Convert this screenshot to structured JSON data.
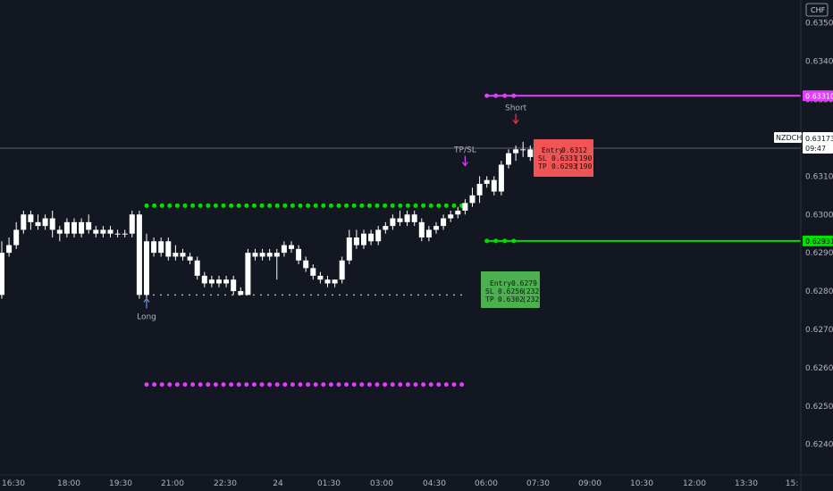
{
  "chart_data": {
    "type": "candlestick",
    "symbol": "NZDCHF",
    "currency_label": "CHF",
    "last_price_label": "0.63173",
    "countdown_label": "09:47",
    "colors": {
      "background": "#131722",
      "candle": "#ffffff",
      "axis_text": "#b2b5be",
      "green": "#00e000",
      "magenta": "#e040fb",
      "red_box": "#f05454",
      "green_box": "#4caf50",
      "line_grey": "#787b86"
    },
    "ylim": [
      0.6232,
      0.6356
    ],
    "y_ticks": [
      "0.62400",
      "0.62500",
      "0.62600",
      "0.62700",
      "0.62800",
      "0.62900",
      "0.63000",
      "0.63100",
      "0.63200",
      "0.63300",
      "0.63400",
      "0.63500"
    ],
    "x_ticks": [
      "16:30",
      "18:00",
      "19:30",
      "21:00",
      "22:30",
      "24",
      "01:30",
      "03:00",
      "04:30",
      "06:00",
      "07:30",
      "09:00",
      "10:30",
      "12:00",
      "13:30",
      "15:"
    ],
    "candles": [
      {
        "o": 0.629,
        "h": 0.6293,
        "c": 0.6279,
        "l": 0.6278
      },
      {
        "o": 0.629,
        "h": 0.6294,
        "c": 0.6292,
        "l": 0.6289
      },
      {
        "o": 0.6292,
        "h": 0.6298,
        "c": 0.6296,
        "l": 0.6291
      },
      {
        "o": 0.6296,
        "h": 0.6301,
        "c": 0.63,
        "l": 0.6295
      },
      {
        "o": 0.63,
        "h": 0.6301,
        "c": 0.6298,
        "l": 0.6296
      },
      {
        "o": 0.6298,
        "h": 0.63,
        "c": 0.6297,
        "l": 0.6296
      },
      {
        "o": 0.6297,
        "h": 0.63,
        "c": 0.6299,
        "l": 0.6296
      },
      {
        "o": 0.6299,
        "h": 0.6301,
        "c": 0.6296,
        "l": 0.6294
      },
      {
        "o": 0.6296,
        "h": 0.6297,
        "c": 0.6295,
        "l": 0.6293
      },
      {
        "o": 0.6295,
        "h": 0.6299,
        "c": 0.6298,
        "l": 0.6294
      },
      {
        "o": 0.6298,
        "h": 0.6299,
        "c": 0.6295,
        "l": 0.6294
      },
      {
        "o": 0.6295,
        "h": 0.6299,
        "c": 0.6298,
        "l": 0.6294
      },
      {
        "o": 0.6298,
        "h": 0.63,
        "c": 0.6296,
        "l": 0.6295
      },
      {
        "o": 0.6296,
        "h": 0.6297,
        "c": 0.6295,
        "l": 0.6294
      },
      {
        "o": 0.6295,
        "h": 0.6297,
        "c": 0.6296,
        "l": 0.6294
      },
      {
        "o": 0.6296,
        "h": 0.6297,
        "c": 0.6295,
        "l": 0.6294
      },
      {
        "o": 0.6295,
        "h": 0.6296,
        "c": 0.6295,
        "l": 0.6294
      },
      {
        "o": 0.6295,
        "h": 0.6296,
        "c": 0.6295,
        "l": 0.6294
      },
      {
        "o": 0.6295,
        "h": 0.6301,
        "c": 0.63,
        "l": 0.6294
      },
      {
        "o": 0.63,
        "h": 0.6301,
        "c": 0.6279,
        "l": 0.6278
      },
      {
        "o": 0.6279,
        "h": 0.6295,
        "c": 0.6293,
        "l": 0.6278
      },
      {
        "o": 0.6293,
        "h": 0.6294,
        "c": 0.629,
        "l": 0.6289
      },
      {
        "o": 0.629,
        "h": 0.6294,
        "c": 0.6293,
        "l": 0.6289
      },
      {
        "o": 0.6293,
        "h": 0.6294,
        "c": 0.6289,
        "l": 0.6288
      },
      {
        "o": 0.6289,
        "h": 0.6292,
        "c": 0.629,
        "l": 0.6288
      },
      {
        "o": 0.629,
        "h": 0.6291,
        "c": 0.6289,
        "l": 0.6288
      },
      {
        "o": 0.6289,
        "h": 0.629,
        "c": 0.6288,
        "l": 0.6287
      },
      {
        "o": 0.6288,
        "h": 0.6289,
        "c": 0.6284,
        "l": 0.6283
      },
      {
        "o": 0.6284,
        "h": 0.6285,
        "c": 0.6282,
        "l": 0.6281
      },
      {
        "o": 0.6282,
        "h": 0.6284,
        "c": 0.6283,
        "l": 0.6281
      },
      {
        "o": 0.6283,
        "h": 0.6284,
        "c": 0.6282,
        "l": 0.6281
      },
      {
        "o": 0.6282,
        "h": 0.6284,
        "c": 0.6283,
        "l": 0.6281
      },
      {
        "o": 0.6283,
        "h": 0.6284,
        "c": 0.628,
        "l": 0.6279
      },
      {
        "o": 0.628,
        "h": 0.6281,
        "c": 0.6279,
        "l": 0.6279
      },
      {
        "o": 0.6279,
        "h": 0.6291,
        "c": 0.629,
        "l": 0.6279
      },
      {
        "o": 0.629,
        "h": 0.6291,
        "c": 0.6289,
        "l": 0.6288
      },
      {
        "o": 0.6289,
        "h": 0.6291,
        "c": 0.629,
        "l": 0.6288
      },
      {
        "o": 0.629,
        "h": 0.6291,
        "c": 0.6289,
        "l": 0.6288
      },
      {
        "o": 0.6289,
        "h": 0.6291,
        "c": 0.629,
        "l": 0.6283
      },
      {
        "o": 0.629,
        "h": 0.6293,
        "c": 0.6292,
        "l": 0.6289
      },
      {
        "o": 0.6292,
        "h": 0.6293,
        "c": 0.6291,
        "l": 0.629
      },
      {
        "o": 0.6291,
        "h": 0.6292,
        "c": 0.6288,
        "l": 0.6287
      },
      {
        "o": 0.6288,
        "h": 0.6289,
        "c": 0.6286,
        "l": 0.6285
      },
      {
        "o": 0.6286,
        "h": 0.6287,
        "c": 0.6284,
        "l": 0.6283
      },
      {
        "o": 0.6284,
        "h": 0.6285,
        "c": 0.6283,
        "l": 0.6282
      },
      {
        "o": 0.6283,
        "h": 0.6284,
        "c": 0.6282,
        "l": 0.6281
      },
      {
        "o": 0.6282,
        "h": 0.6283,
        "c": 0.6283,
        "l": 0.6281
      },
      {
        "o": 0.6283,
        "h": 0.6289,
        "c": 0.6288,
        "l": 0.6282
      },
      {
        "o": 0.6288,
        "h": 0.6296,
        "c": 0.6294,
        "l": 0.6287
      },
      {
        "o": 0.6294,
        "h": 0.6296,
        "c": 0.6292,
        "l": 0.6291
      },
      {
        "o": 0.6292,
        "h": 0.6296,
        "c": 0.6295,
        "l": 0.6291
      },
      {
        "o": 0.6295,
        "h": 0.6296,
        "c": 0.6293,
        "l": 0.6292
      },
      {
        "o": 0.6293,
        "h": 0.6297,
        "c": 0.6296,
        "l": 0.6292
      },
      {
        "o": 0.6296,
        "h": 0.6298,
        "c": 0.6297,
        "l": 0.6295
      },
      {
        "o": 0.6297,
        "h": 0.63,
        "c": 0.6299,
        "l": 0.6296
      },
      {
        "o": 0.6299,
        "h": 0.6301,
        "c": 0.6298,
        "l": 0.6297
      },
      {
        "o": 0.6298,
        "h": 0.6301,
        "c": 0.63,
        "l": 0.6297
      },
      {
        "o": 0.63,
        "h": 0.6301,
        "c": 0.6298,
        "l": 0.6297
      },
      {
        "o": 0.6298,
        "h": 0.6299,
        "c": 0.6294,
        "l": 0.6293
      },
      {
        "o": 0.6294,
        "h": 0.6297,
        "c": 0.6296,
        "l": 0.6293
      },
      {
        "o": 0.6296,
        "h": 0.6298,
        "c": 0.6297,
        "l": 0.6295
      },
      {
        "o": 0.6297,
        "h": 0.63,
        "c": 0.6299,
        "l": 0.6296
      },
      {
        "o": 0.6299,
        "h": 0.6301,
        "c": 0.63,
        "l": 0.6298
      },
      {
        "o": 0.63,
        "h": 0.6302,
        "c": 0.6301,
        "l": 0.6299
      },
      {
        "o": 0.6301,
        "h": 0.6304,
        "c": 0.6303,
        "l": 0.63
      },
      {
        "o": 0.6303,
        "h": 0.6307,
        "c": 0.6305,
        "l": 0.6302
      },
      {
        "o": 0.6305,
        "h": 0.631,
        "c": 0.6308,
        "l": 0.6303
      },
      {
        "o": 0.6308,
        "h": 0.631,
        "c": 0.6309,
        "l": 0.6307
      },
      {
        "o": 0.6309,
        "h": 0.631,
        "c": 0.6306,
        "l": 0.6305
      },
      {
        "o": 0.6306,
        "h": 0.6314,
        "c": 0.6313,
        "l": 0.6305
      },
      {
        "o": 0.6313,
        "h": 0.6317,
        "c": 0.6316,
        "l": 0.6312
      },
      {
        "o": 0.6316,
        "h": 0.6318,
        "c": 0.6317,
        "l": 0.6314
      },
      {
        "o": 0.6317,
        "h": 0.6319,
        "c": 0.6317,
        "l": 0.6315
      },
      {
        "o": 0.6317,
        "h": 0.6318,
        "c": 0.6315,
        "l": 0.6314
      },
      {
        "o": 0.6315,
        "h": 0.6318,
        "c": 0.6316,
        "l": 0.6314
      },
      {
        "o": 0.6316,
        "h": 0.6319,
        "c": 0.6318,
        "l": 0.6314
      },
      {
        "o": 0.6318,
        "h": 0.6318,
        "c": 0.6317,
        "l": 0.6314
      }
    ],
    "levels": [
      {
        "name": "green-dotted-level",
        "value": 0.63023,
        "start": 20,
        "end": 64,
        "style": "dots",
        "color": "#00e000"
      },
      {
        "name": "magenta-dotted-level",
        "value": 0.62556,
        "start": 20,
        "end": 64,
        "style": "dots",
        "color": "#e040fb"
      },
      {
        "name": "grey-dotted-level",
        "value": 0.6279,
        "start": 20,
        "end": 64,
        "style": "small-dots",
        "color": "#cfd0d4"
      },
      {
        "name": "magenta-sl-line",
        "value": 0.6331,
        "start": 67,
        "end": 999,
        "style": "line",
        "color": "#e040fb"
      },
      {
        "name": "green-tp-line",
        "value": 0.62931,
        "start": 67,
        "end": 999,
        "style": "line",
        "color": "#00e000"
      }
    ],
    "price_tags": [
      {
        "name": "price-tag-magenta",
        "label": "0.63310",
        "value": 0.6331,
        "bg": "#e040fb",
        "fg": "#ffffff"
      },
      {
        "name": "price-tag-green",
        "label": "0.62931",
        "value": 0.62931,
        "bg": "#00e000",
        "fg": "#000000"
      }
    ],
    "annotations": [
      {
        "name": "long-label",
        "text": "Long",
        "candle": 20,
        "value": 0.6275,
        "arrow": "up",
        "color": "#6f8fd0"
      },
      {
        "name": "short-label",
        "text": "Short",
        "candle": 71,
        "value": 0.6324,
        "arrow": "down",
        "color": "#f23645"
      },
      {
        "name": "tpsl-label",
        "text": "TP/SL",
        "candle": 64,
        "value": 0.6313,
        "arrow": "down",
        "color": "#e040fb"
      }
    ],
    "short_box": {
      "entry_label": "Entry",
      "entry": "0.6312",
      "sl_label": "SL",
      "sl": "0.6331",
      "sl_pips": "(190)",
      "tp_label": "TP",
      "tp": "0.6293",
      "tp_pips": "(190)"
    },
    "long_box": {
      "entry_label": "Entry",
      "entry": "0.6279",
      "sl_label": "SL",
      "sl": "0.6256",
      "sl_pips": "(232)",
      "tp_label": "TP",
      "tp": "0.6302",
      "tp_pips": "(232)"
    }
  }
}
